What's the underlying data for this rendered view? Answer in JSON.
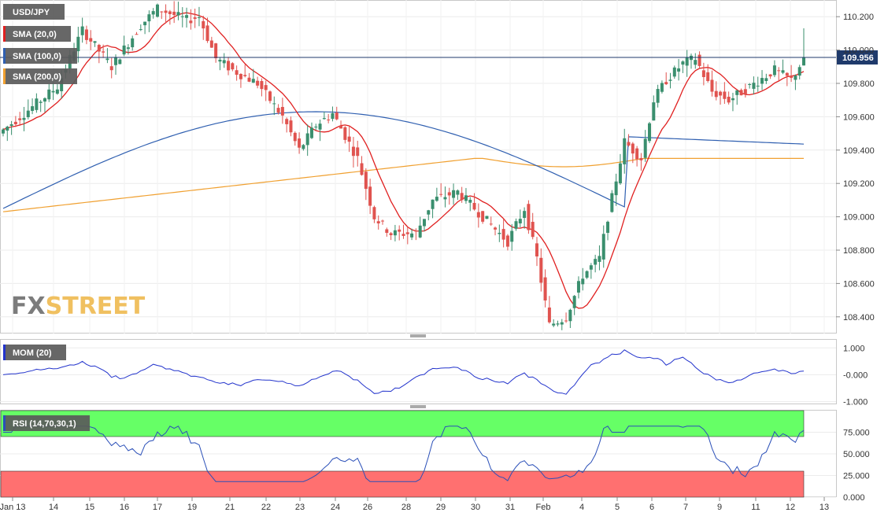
{
  "chart_data": {
    "type": "candlestick",
    "instrument": "USD/JPY",
    "indicators": {
      "sma20_label": "SMA (20,0)",
      "sma100_label": "SMA (100,0)",
      "sma200_label": "SMA (200,0)",
      "mom_label": "MOM (20)",
      "rsi_label": "RSI (14,70,30,1)"
    },
    "last_price_label": "109.956",
    "last_price": 109.956,
    "price_axis": {
      "ylim": [
        108.3,
        110.3
      ],
      "ticks": [
        "110.200",
        "110.000",
        "109.800",
        "109.600",
        "109.400",
        "109.200",
        "109.000",
        "108.800",
        "108.600",
        "108.400"
      ]
    },
    "mom_axis": {
      "ylim": [
        -1.1,
        1.3
      ],
      "ticks": [
        "1.000",
        "-0.000",
        "-1.000"
      ]
    },
    "rsi_axis": {
      "ylim": [
        0,
        100
      ],
      "ticks": [
        "75.000",
        "50.000",
        "25.000",
        "0.000"
      ],
      "overbought": 70,
      "oversold": 30
    },
    "x_ticks": [
      "Jan 13",
      "14",
      "15",
      "16",
      "17",
      "19",
      "21",
      "22",
      "23",
      "24",
      "26",
      "28",
      "29",
      "30",
      "31",
      "Feb",
      "4",
      "5",
      "6",
      "7",
      "9",
      "11",
      "12",
      "13"
    ],
    "watermark": {
      "part1": "FX",
      "part2": "STREET"
    },
    "colors": {
      "up": "#3a8f6e",
      "down": "#e0534f",
      "sma20": "#e02020",
      "sma100": "#2f5fb0",
      "sma200": "#f0a030",
      "mom": "#2233cc",
      "rsi": "#2a4fb8",
      "ob_zone": "#66ff66",
      "os_zone": "#ff7070",
      "badge": "#5a5a5a"
    }
  }
}
